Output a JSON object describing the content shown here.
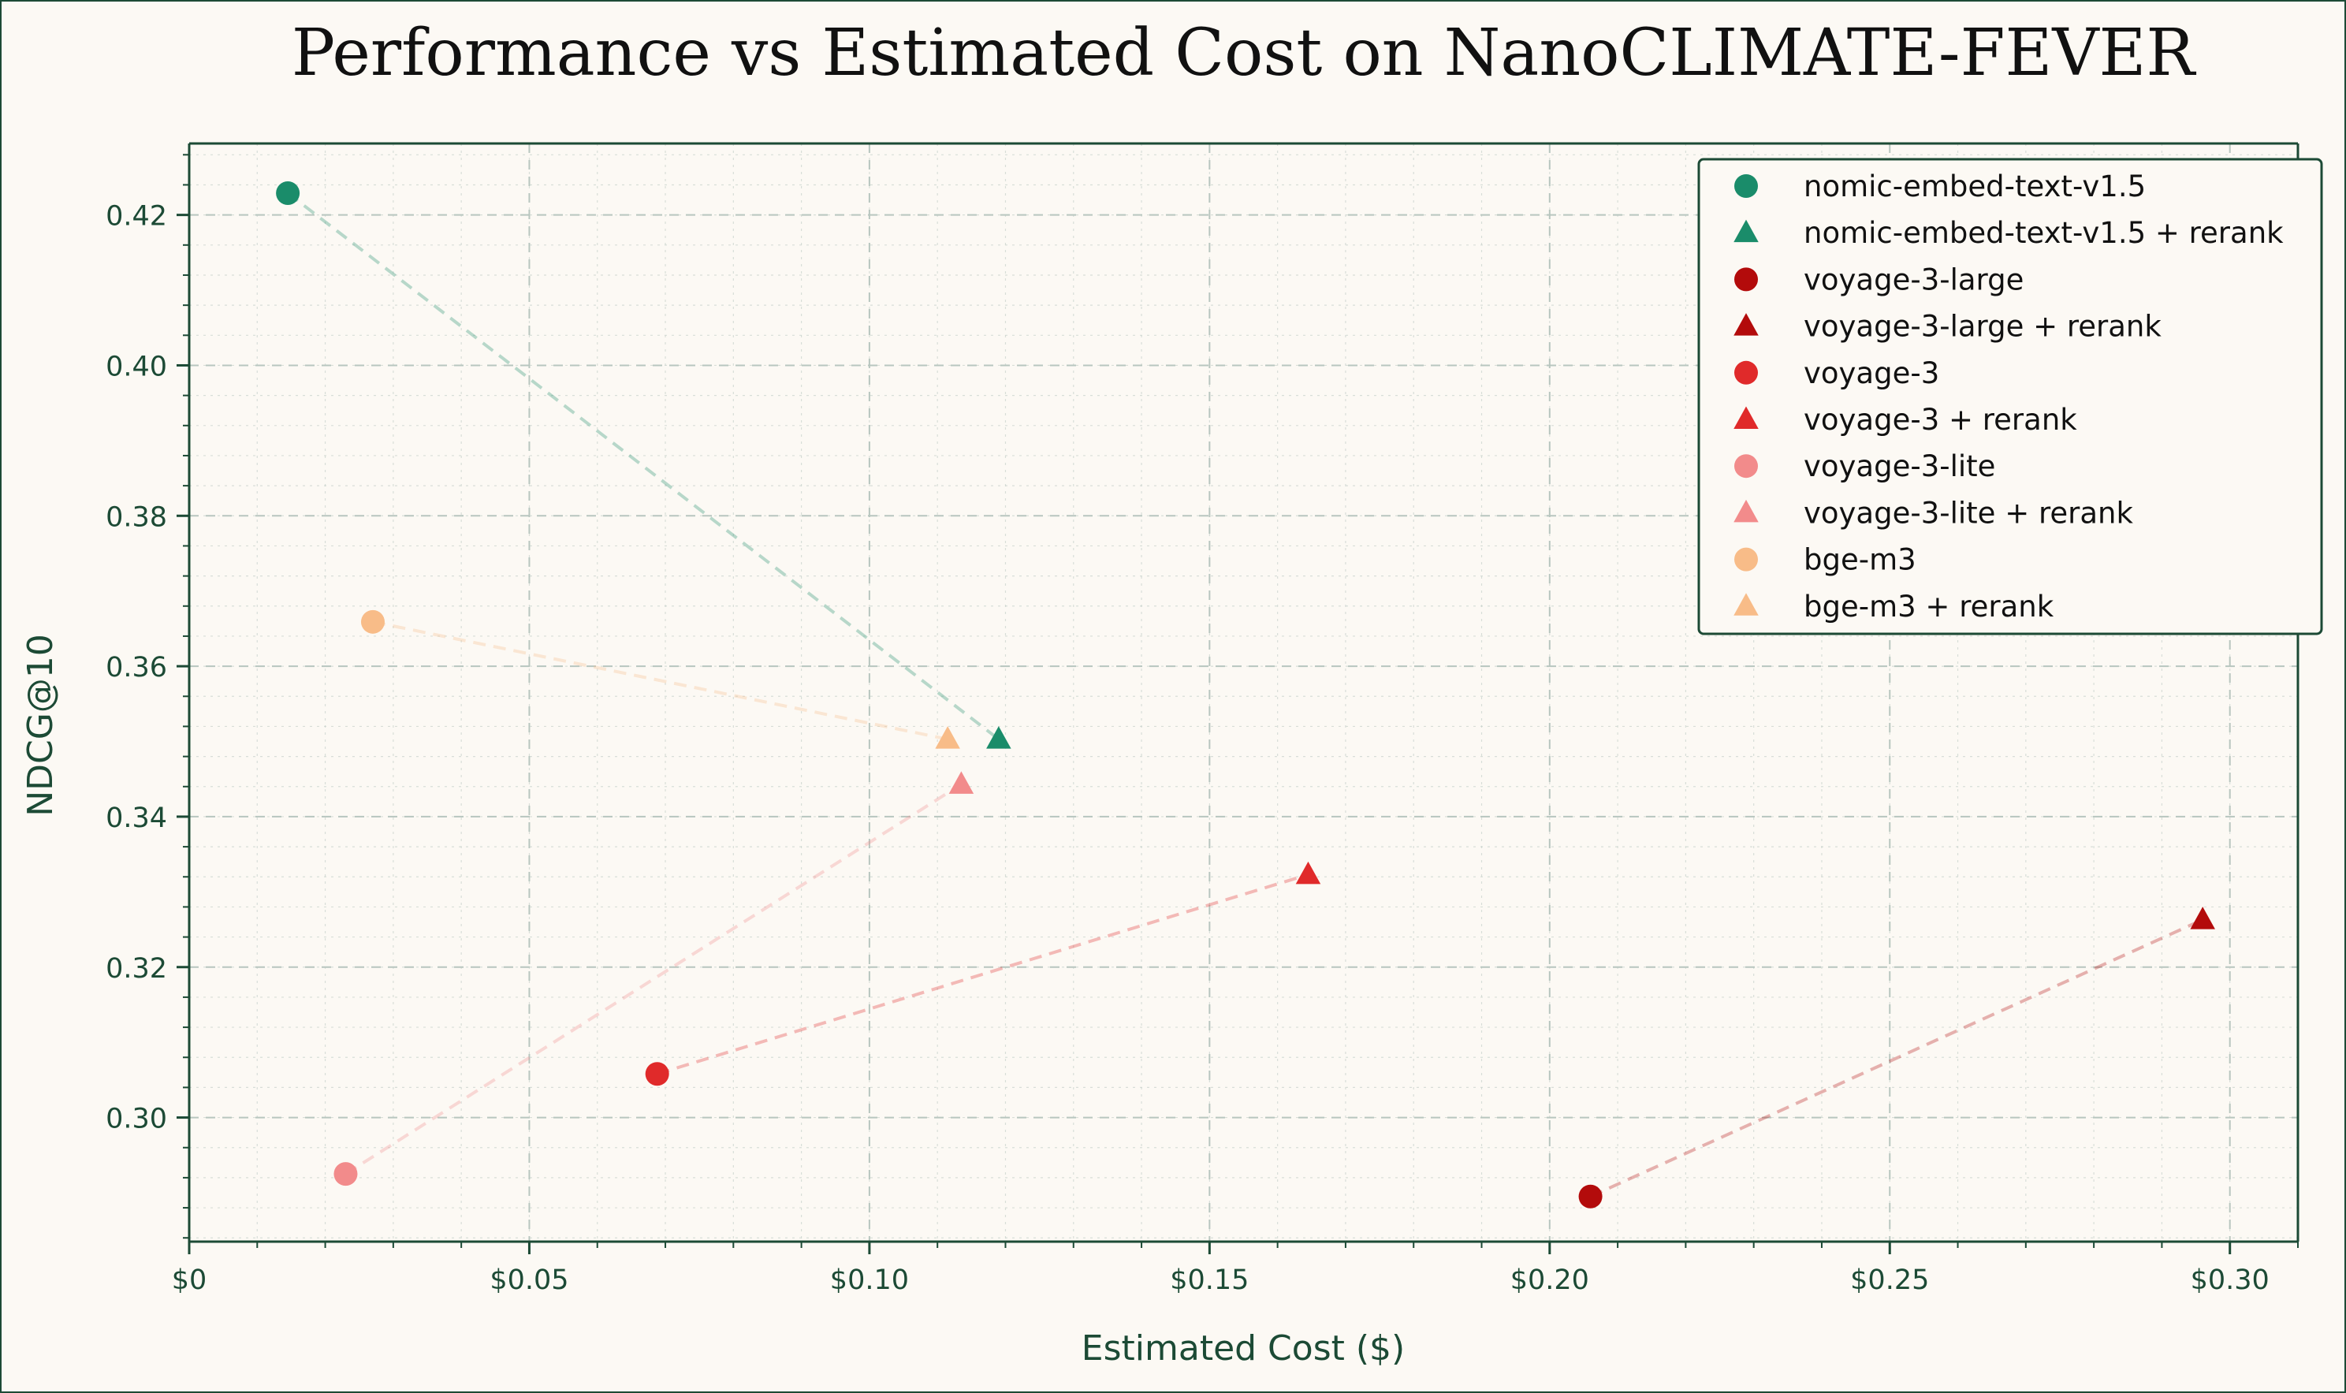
{
  "chart_data": {
    "type": "scatter",
    "title": "Performance vs Estimated Cost on NanoCLIMATE-FEVER",
    "xlabel": "Estimated Cost ($)",
    "ylabel": "NDCG@10",
    "xlim": [
      0,
      0.31
    ],
    "ylim": [
      0.2835,
      0.4295
    ],
    "x_ticks": [
      0,
      0.05,
      0.1,
      0.15,
      0.2,
      0.25,
      0.3
    ],
    "x_tick_labels": [
      "$0",
      "$0.05",
      "$0.10",
      "$0.15",
      "$0.20",
      "$0.25",
      "$0.30"
    ],
    "y_ticks": [
      0.3,
      0.32,
      0.34,
      0.36,
      0.38,
      0.4,
      0.42
    ],
    "y_tick_labels": [
      "0.30",
      "0.32",
      "0.34",
      "0.36",
      "0.38",
      "0.40",
      "0.42"
    ],
    "grid": true,
    "legend_position": "top-right",
    "series": [
      {
        "name": "nomic-embed-text-v1.5",
        "marker": "circle",
        "color": "#1a8c6a",
        "x": 0.0145,
        "y": 0.4229
      },
      {
        "name": "nomic-embed-text-v1.5 + rerank",
        "marker": "triangle",
        "color": "#1a8c6a",
        "x": 0.119,
        "y": 0.3503
      },
      {
        "name": "voyage-3-large",
        "marker": "circle",
        "color": "#b30b0b",
        "x": 0.206,
        "y": 0.2895
      },
      {
        "name": "voyage-3-large + rerank",
        "marker": "triangle",
        "color": "#b30b0b",
        "x": 0.296,
        "y": 0.3263
      },
      {
        "name": "voyage-3",
        "marker": "circle",
        "color": "#e02a2a",
        "x": 0.0688,
        "y": 0.3058
      },
      {
        "name": "voyage-3 + rerank",
        "marker": "triangle",
        "color": "#e02a2a",
        "x": 0.1645,
        "y": 0.3323
      },
      {
        "name": "voyage-3-lite",
        "marker": "circle",
        "color": "#f28b8b",
        "x": 0.023,
        "y": 0.2925
      },
      {
        "name": "voyage-3-lite + rerank",
        "marker": "triangle",
        "color": "#f28b8b",
        "x": 0.1135,
        "y": 0.3443
      },
      {
        "name": "bge-m3",
        "marker": "circle",
        "color": "#f8bc88",
        "x": 0.027,
        "y": 0.3659
      },
      {
        "name": "bge-m3 + rerank",
        "marker": "triangle",
        "color": "#f8bc88",
        "x": 0.1115,
        "y": 0.3503
      }
    ],
    "connections": [
      {
        "from": 0,
        "to": 1,
        "color": "#1a8c6a"
      },
      {
        "from": 2,
        "to": 3,
        "color": "#b30b0b"
      },
      {
        "from": 4,
        "to": 5,
        "color": "#e02a2a"
      },
      {
        "from": 6,
        "to": 7,
        "color": "#f28b8b"
      },
      {
        "from": 8,
        "to": 9,
        "color": "#f8bc88"
      }
    ]
  },
  "colors": {
    "frame": "#1c4a35",
    "background": "#fcf9f4",
    "axis": "#1c4a35"
  }
}
